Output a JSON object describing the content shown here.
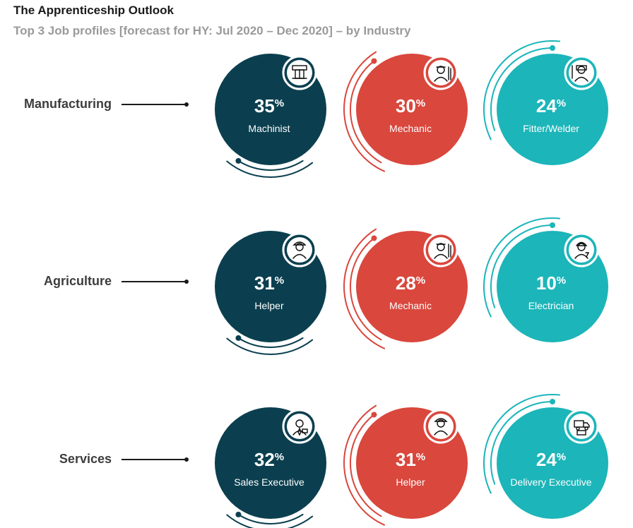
{
  "header": {
    "title": "The Apprenticeship Outlook",
    "subtitle": "Top 3 Job profiles [forecast for HY: Jul 2020 – Dec 2020] – by Industry"
  },
  "colors": {
    "dark": "#0b3f4f",
    "red": "#d9473d",
    "teal": "#1cb5b9"
  },
  "chart_data": {
    "type": "bubble-infographic",
    "title": "The Apprenticeship Outlook",
    "subtitle": "Top 3 Job profiles [forecast for HY: Jul 2020 – Dec 2020] – by Industry",
    "unit": "%",
    "industries": [
      {
        "name": "Manufacturing",
        "jobs": [
          {
            "rank": 1,
            "job": "Machinist",
            "value": 35,
            "label": "35",
            "icon": "machinist-icon"
          },
          {
            "rank": 2,
            "job": "Mechanic",
            "value": 30,
            "label": "30",
            "icon": "mechanic-icon"
          },
          {
            "rank": 3,
            "job": "Fitter/Welder",
            "value": 24,
            "label": "24",
            "icon": "welder-icon"
          }
        ]
      },
      {
        "name": "Agriculture",
        "jobs": [
          {
            "rank": 1,
            "job": "Helper",
            "value": 31,
            "label": "31",
            "icon": "helper-icon"
          },
          {
            "rank": 2,
            "job": "Mechanic",
            "value": 28,
            "label": "28",
            "icon": "mechanic-icon"
          },
          {
            "rank": 3,
            "job": "Electrician",
            "value": 10,
            "label": "10",
            "icon": "electrician-icon"
          }
        ]
      },
      {
        "name": "Services",
        "jobs": [
          {
            "rank": 1,
            "job": "Sales Executive",
            "value": 32,
            "label": "32",
            "icon": "sales-executive-icon"
          },
          {
            "rank": 2,
            "job": "Helper",
            "value": 31,
            "label": "31",
            "icon": "helper-icon"
          },
          {
            "rank": 3,
            "job": "Delivery Executive",
            "value": 24,
            "label": "24",
            "icon": "delivery-icon"
          }
        ]
      }
    ]
  }
}
